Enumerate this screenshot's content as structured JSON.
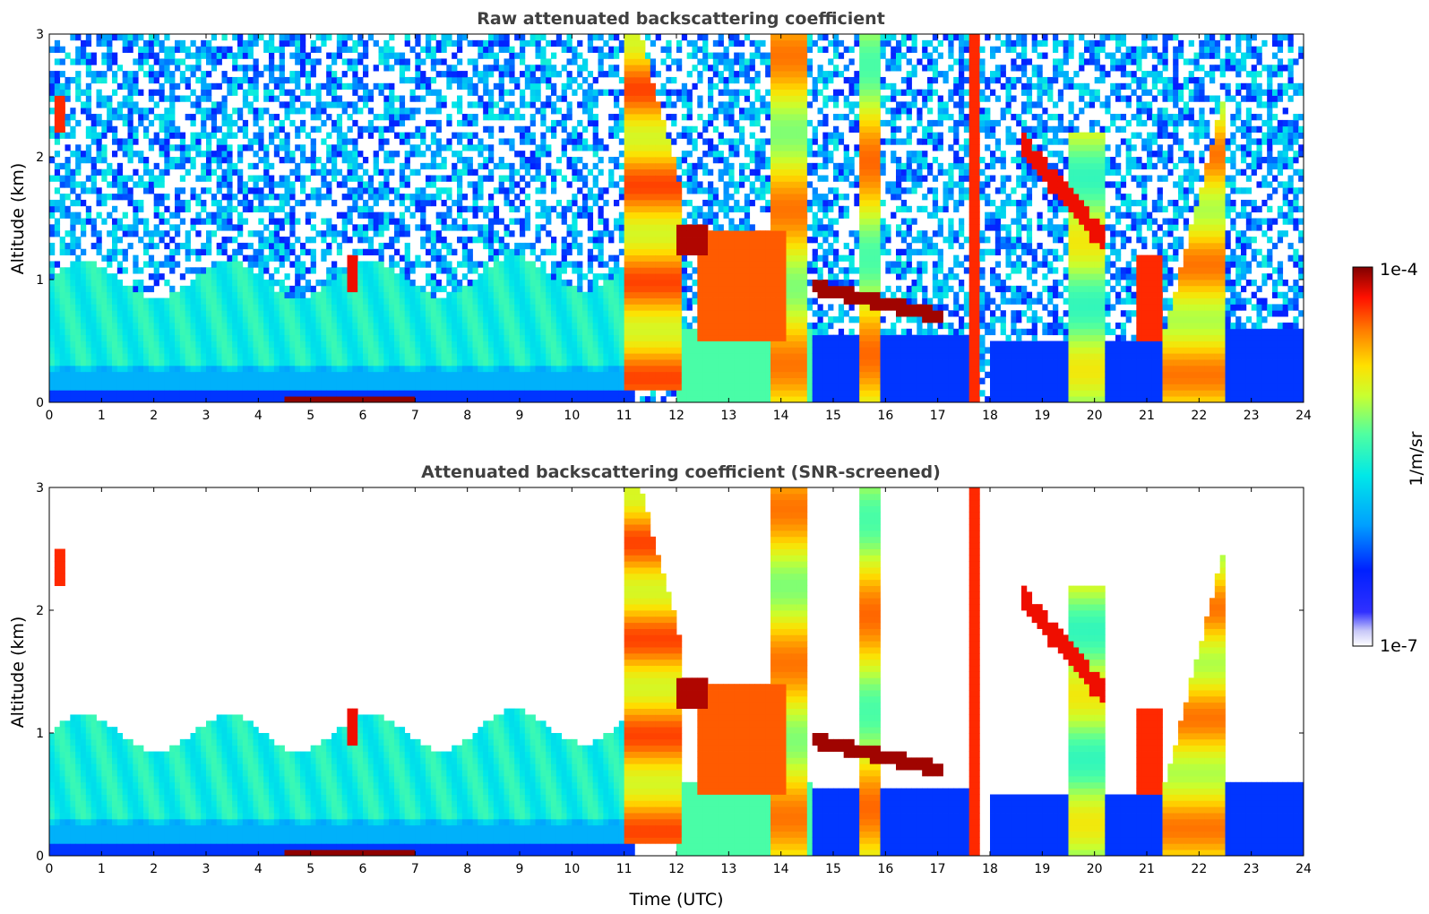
{
  "chart_data": [
    {
      "type": "heatmap",
      "title": "Raw attenuated backscattering coefficient",
      "xlabel": "",
      "ylabel": "Altitude (km)",
      "xlim": [
        0,
        24
      ],
      "ylim": [
        0,
        3
      ],
      "xticks": [
        "0",
        "1",
        "2",
        "3",
        "4",
        "5",
        "6",
        "7",
        "8",
        "9",
        "10",
        "11",
        "12",
        "13",
        "14",
        "15",
        "16",
        "17",
        "18",
        "19",
        "20",
        "21",
        "22",
        "23",
        "24"
      ],
      "yticks": [
        "0",
        "1",
        "2",
        "3"
      ],
      "screened": false
    },
    {
      "type": "heatmap",
      "title": "Attenuated backscattering coefficient (SNR-screened)",
      "xlabel": "Time (UTC)",
      "ylabel": "Altitude (km)",
      "xlim": [
        0,
        24
      ],
      "ylim": [
        0,
        3
      ],
      "xticks": [
        "0",
        "1",
        "2",
        "3",
        "4",
        "5",
        "6",
        "7",
        "8",
        "9",
        "10",
        "11",
        "12",
        "13",
        "14",
        "15",
        "16",
        "17",
        "18",
        "19",
        "20",
        "21",
        "22",
        "23",
        "24"
      ],
      "yticks": [
        "0",
        "1",
        "2",
        "3"
      ],
      "screened": true
    }
  ],
  "colorbar": {
    "label": "1/m/sr",
    "max_label": "1e-4",
    "min_label": "1e-7",
    "colors": [
      "#ffffff",
      "#d8d8f8",
      "#8080ff",
      "#0000ff",
      "#0040ff",
      "#00a0ff",
      "#00e0f0",
      "#40ffb0",
      "#a0ff50",
      "#e0ff00",
      "#ffd000",
      "#ff8000",
      "#ff2000",
      "#c00000",
      "#800000"
    ]
  }
}
